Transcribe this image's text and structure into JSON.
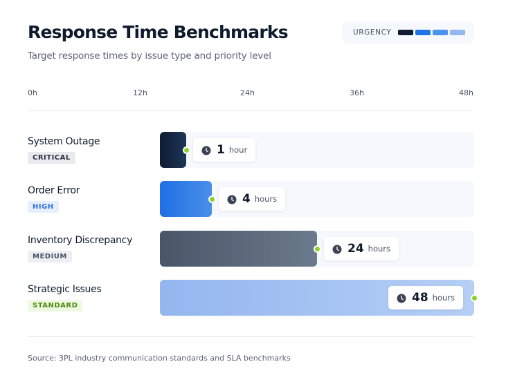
{
  "title": "Response Time Benchmarks",
  "subtitle": "Target response times by issue type and priority level",
  "legend": {
    "label": "URGENCY",
    "colors": [
      "#0f1b33",
      "#1f74e6",
      "#4d92ec",
      "#93b8f0"
    ]
  },
  "source": "Source: 3PL industry communication standards and SLA benchmarks",
  "chart_data": {
    "type": "bar",
    "orientation": "horizontal",
    "x_ticks": [
      "0h",
      "12h",
      "24h",
      "36h",
      "48h"
    ],
    "xlim": [
      0,
      48
    ],
    "grid": false,
    "categories": [
      "System Outage",
      "Order Error",
      "Inventory Discrepancy",
      "Strategic Issues"
    ],
    "priorities": [
      "CRITICAL",
      "HIGH",
      "MEDIUM",
      "STANDARD"
    ],
    "values": [
      1,
      4,
      24,
      48
    ],
    "units": [
      "hour",
      "hours",
      "hours",
      "hours"
    ],
    "bar_colors": [
      [
        "#0f1b33",
        "#1e3556"
      ],
      [
        "#1f6fe5",
        "#4a8fe8"
      ],
      [
        "#4a5568",
        "#6b7a8c"
      ],
      [
        "#94b6ef",
        "#b5cff5"
      ]
    ],
    "badge_colors": [
      [
        "#e8eaee",
        "#2a3040"
      ],
      [
        "#e6effd",
        "#2f6fe0"
      ],
      [
        "#eceef1",
        "#4a5363"
      ],
      [
        "#eef9e3",
        "#4d8a12"
      ]
    ]
  }
}
